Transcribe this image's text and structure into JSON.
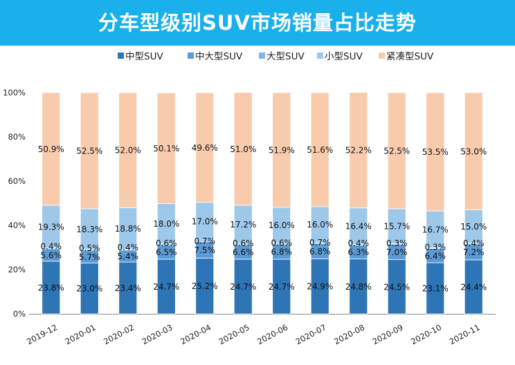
{
  "title": "分车型级别SUV市场销量占比走势",
  "colors": {
    "header_bg": "#1ab0ec",
    "series": [
      "#2e75b6",
      "#5b9bd5",
      "#7eb6e4",
      "#9dc8ea",
      "#f8cbad"
    ]
  },
  "chart_data": {
    "type": "bar",
    "stacked": true,
    "categories": [
      "2019-12",
      "2020-01",
      "2020-02",
      "2020-03",
      "2020-04",
      "2020-05",
      "2020-06",
      "2020-07",
      "2020-08",
      "2020-09",
      "2020-10",
      "2020-11"
    ],
    "series": [
      {
        "name": "中型SUV",
        "values": [
          23.8,
          23.0,
          23.4,
          24.7,
          25.2,
          24.7,
          24.7,
          24.9,
          24.8,
          24.5,
          23.1,
          24.4
        ]
      },
      {
        "name": "中大型SUV",
        "values": [
          5.6,
          5.7,
          5.4,
          6.5,
          7.5,
          6.6,
          6.8,
          6.8,
          6.3,
          7.0,
          6.4,
          7.2
        ]
      },
      {
        "name": "大型SUV",
        "values": [
          0.4,
          0.5,
          0.4,
          0.6,
          0.7,
          0.6,
          0.6,
          0.7,
          0.4,
          0.3,
          0.3,
          0.4
        ]
      },
      {
        "name": "小型SUV",
        "values": [
          19.3,
          18.3,
          18.8,
          18.0,
          17.0,
          17.2,
          16.0,
          16.0,
          16.4,
          15.7,
          16.7,
          15.0
        ]
      },
      {
        "name": "紧凑型SUV",
        "values": [
          50.9,
          52.5,
          52.0,
          50.1,
          49.6,
          51.0,
          51.9,
          51.6,
          52.2,
          52.5,
          53.5,
          53.0
        ]
      }
    ],
    "y_ticks": [
      "0%",
      "20%",
      "40%",
      "60%",
      "80%",
      "100%"
    ],
    "ylim": [
      0,
      100
    ],
    "legend_position": "top",
    "grid": false,
    "value_format": "percent, 1 decimal"
  }
}
